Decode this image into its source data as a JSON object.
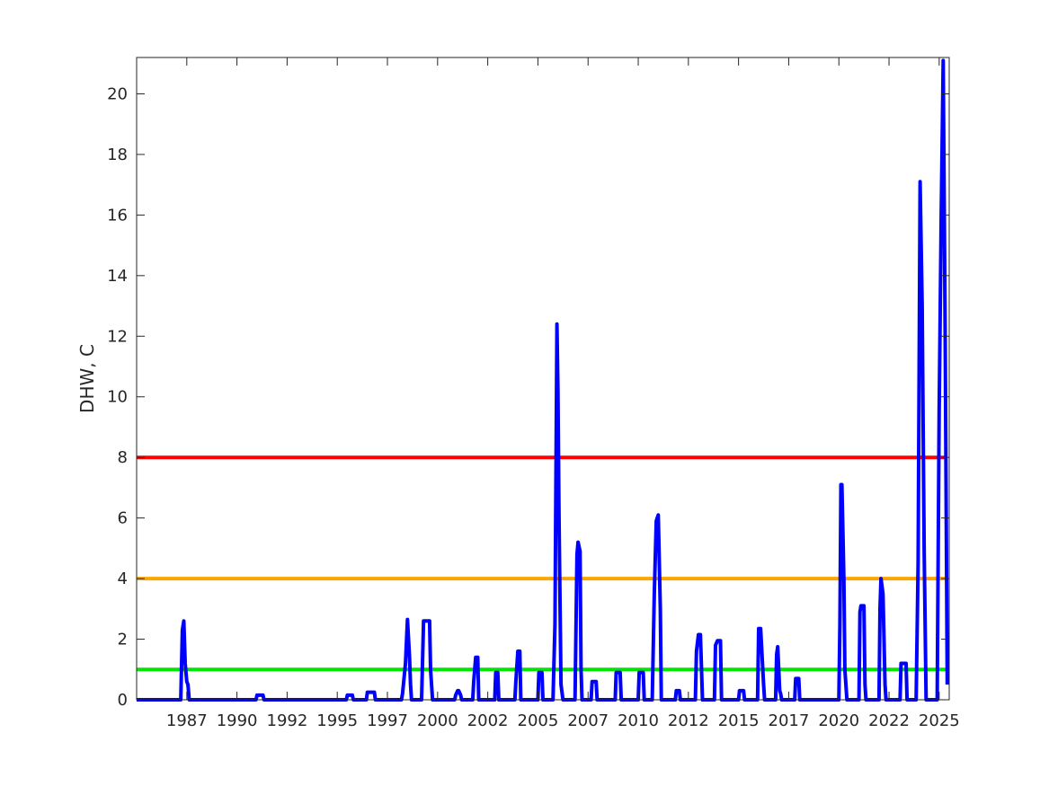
{
  "chart_data": {
    "type": "line",
    "title": "",
    "xlabel": "",
    "ylabel": "DHW, C",
    "xlim": [
      1985.0,
      2025.5
    ],
    "ylim": [
      0,
      21.2
    ],
    "grid": false,
    "y_ticks": [
      0,
      2,
      4,
      6,
      8,
      10,
      12,
      14,
      16,
      18,
      20
    ],
    "x_ticks": [
      {
        "value": 1987.5,
        "label": "1987"
      },
      {
        "value": 1990.0,
        "label": "1990"
      },
      {
        "value": 1992.5,
        "label": "1992"
      },
      {
        "value": 1995.0,
        "label": "1995"
      },
      {
        "value": 1997.5,
        "label": "1997"
      },
      {
        "value": 2000.0,
        "label": "2000"
      },
      {
        "value": 2002.5,
        "label": "2002"
      },
      {
        "value": 2005.0,
        "label": "2005"
      },
      {
        "value": 2007.5,
        "label": "2007"
      },
      {
        "value": 2010.0,
        "label": "2010"
      },
      {
        "value": 2012.5,
        "label": "2012"
      },
      {
        "value": 2015.0,
        "label": "2015"
      },
      {
        "value": 2017.5,
        "label": "2017"
      },
      {
        "value": 2020.0,
        "label": "2020"
      },
      {
        "value": 2022.5,
        "label": "2022"
      },
      {
        "value": 2025.0,
        "label": "2025"
      }
    ],
    "thresholds": [
      {
        "value": 8,
        "color": "#ff0000"
      },
      {
        "value": 4,
        "color": "#ffa500"
      },
      {
        "value": 1,
        "color": "#00e600"
      }
    ],
    "series_color": "#0000ff",
    "series": [
      {
        "x": [
          1985.0,
          1987.2,
          1987.28,
          1987.35,
          1987.42,
          1987.5,
          1987.56,
          1987.62,
          1987.7,
          1987.75,
          1987.8,
          1990.95,
          1991.0,
          1991.3,
          1991.35,
          1995.45,
          1995.5,
          1995.75,
          1995.8,
          1996.45,
          1996.5,
          1996.85,
          1996.9,
          1998.2,
          1998.25,
          1998.4,
          1998.5,
          1998.6,
          1998.65,
          1998.7,
          1998.75,
          1998.85,
          1999.2,
          1999.3,
          1999.35,
          1999.6,
          1999.65,
          1999.75,
          2000.85,
          2000.9,
          2001.0,
          2001.05,
          2001.15,
          2001.2,
          2001.75,
          2001.8,
          2001.9,
          2002.0,
          2002.05,
          2002.85,
          2002.9,
          2003.0,
          2003.05,
          2003.85,
          2003.9,
          2004.0,
          2004.1,
          2004.15,
          2005.0,
          2005.05,
          2005.2,
          2005.25,
          2005.75,
          2005.85,
          2005.95,
          2006.0,
          2006.05,
          2006.15,
          2006.25,
          2006.3,
          2006.85,
          2006.95,
          2007.0,
          2007.1,
          2007.15,
          2007.2,
          2007.65,
          2007.7,
          2007.9,
          2007.95,
          2008.85,
          2008.9,
          2009.1,
          2009.15,
          2010.0,
          2010.05,
          2010.25,
          2010.3,
          2010.7,
          2010.8,
          2010.9,
          2011.0,
          2011.1,
          2011.15,
          2011.85,
          2011.9,
          2012.05,
          2012.1,
          2012.85,
          2012.9,
          2013.0,
          2013.1,
          2013.2,
          2013.8,
          2013.85,
          2013.95,
          2014.1,
          2014.15,
          2015.0,
          2015.05,
          2015.25,
          2015.3,
          2015.95,
          2016.0,
          2016.1,
          2016.25,
          2016.3,
          2016.85,
          2016.9,
          2016.95,
          2017.05,
          2017.1,
          2017.15,
          2017.8,
          2017.85,
          2018.0,
          2018.05,
          2020.0,
          2020.05,
          2020.1,
          2020.15,
          2020.25,
          2020.3,
          2020.4,
          2021.0,
          2021.05,
          2021.1,
          2021.25,
          2021.3,
          2021.35,
          2022.0,
          2022.05,
          2022.1,
          2022.2,
          2022.3,
          2022.35,
          2023.05,
          2023.1,
          2023.35,
          2023.4,
          2023.85,
          2023.95,
          2024.05,
          2024.15,
          2024.25,
          2024.35,
          2024.9,
          2025.0,
          2025.1,
          2025.2,
          2025.3,
          2025.4
        ],
        "y": [
          0,
          0,
          2.3,
          2.6,
          1.2,
          0.6,
          0.5,
          0,
          0,
          0,
          0,
          0,
          0.15,
          0.15,
          0,
          0,
          0.15,
          0.15,
          0,
          0,
          0.25,
          0.25,
          0,
          0,
          0.2,
          1.2,
          2.65,
          1.4,
          0.5,
          0,
          0,
          0,
          0,
          2.6,
          2.6,
          2.6,
          1.0,
          0,
          0,
          0.15,
          0.3,
          0.3,
          0.15,
          0,
          0,
          0.6,
          1.4,
          1.4,
          0,
          0,
          0.9,
          0.9,
          0,
          0,
          0.6,
          1.6,
          1.6,
          0,
          0,
          0.9,
          0.9,
          0,
          0,
          2.5,
          12.4,
          10.2,
          6.0,
          0.5,
          0,
          0,
          0,
          4.8,
          5.2,
          4.9,
          1.0,
          0,
          0,
          0.6,
          0.6,
          0,
          0,
          0.9,
          0.9,
          0,
          0,
          0.9,
          0.9,
          0,
          0,
          3.5,
          5.9,
          6.1,
          3.0,
          0,
          0,
          0.3,
          0.3,
          0,
          0,
          1.6,
          2.15,
          2.15,
          0,
          0,
          1.8,
          1.95,
          1.95,
          0,
          0,
          0.3,
          0.3,
          0,
          0,
          2.35,
          2.35,
          0.5,
          0,
          0,
          1.5,
          1.75,
          0.3,
          0.2,
          0,
          0,
          0.7,
          0.7,
          0,
          0,
          2.5,
          7.1,
          7.1,
          4.0,
          1.0,
          0,
          0,
          2.9,
          3.1,
          3.1,
          0.5,
          0,
          0,
          3.0,
          4.0,
          3.5,
          0.5,
          0,
          0,
          1.2,
          1.2,
          0,
          0,
          4.5,
          17.1,
          13.0,
          5.0,
          0,
          0,
          9.5,
          16.0,
          21.1,
          12.0,
          0.5
        ]
      }
    ]
  }
}
